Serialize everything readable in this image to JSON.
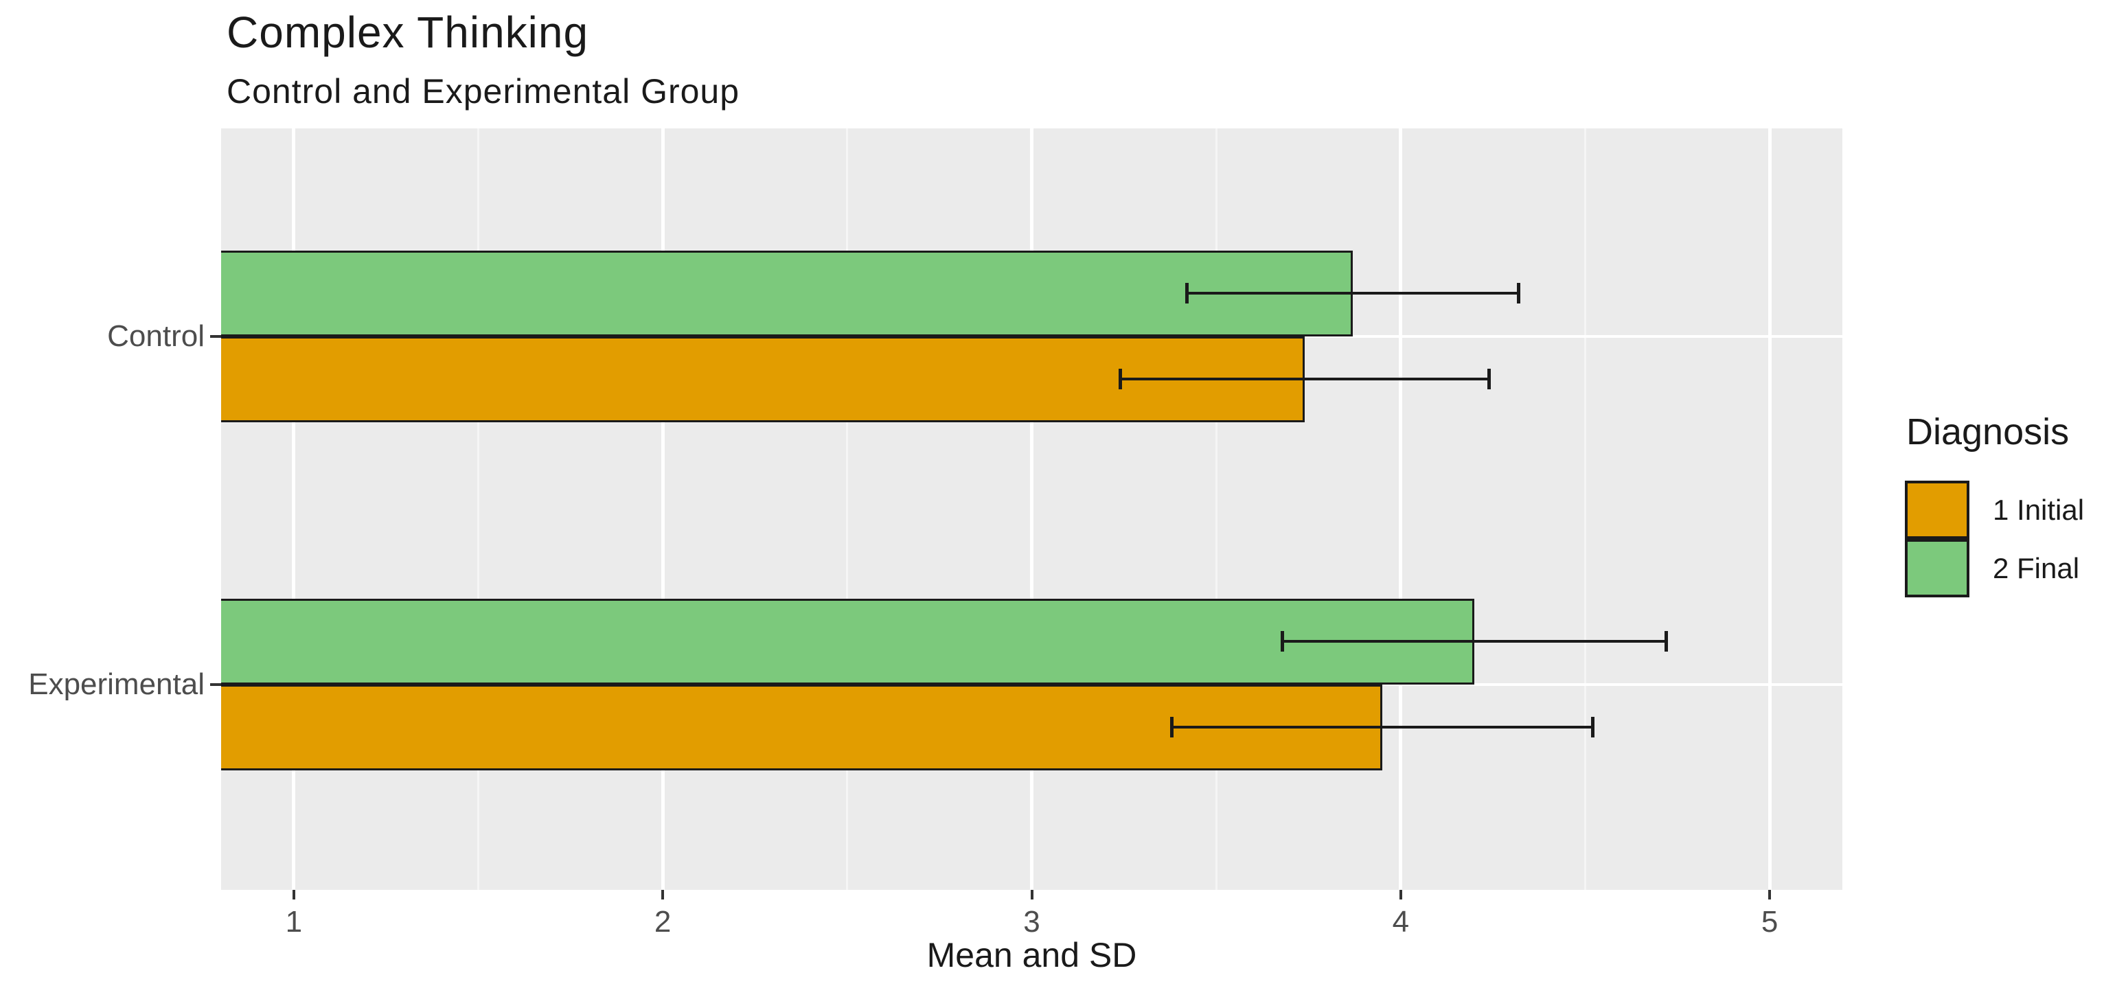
{
  "figure": {
    "title": "Complex Thinking",
    "subtitle": "Control and Experimental Group"
  },
  "chart_data": {
    "type": "bar",
    "orientation": "horizontal",
    "title": "Complex Thinking",
    "subtitle": "Control and Experimental Group",
    "xlabel": "Mean and SD",
    "ylabel": "",
    "categories": [
      "Control",
      "Experimental"
    ],
    "series": [
      {
        "name": "1 Initial",
        "color": "#e29d00",
        "values": [
          3.74,
          3.95
        ],
        "error_low": [
          3.24,
          3.38
        ],
        "error_high": [
          4.24,
          4.52
        ]
      },
      {
        "name": "2 Final",
        "color": "#7cc97c",
        "values": [
          3.87,
          4.2
        ],
        "error_low": [
          3.42,
          3.68
        ],
        "error_high": [
          4.32,
          4.72
        ]
      }
    ],
    "legend": {
      "title": "Diagnosis",
      "position": "right",
      "entries": [
        {
          "label": "1 Initial",
          "color": "#e29d00"
        },
        {
          "label": "2 Final",
          "color": "#7cc97c"
        }
      ]
    },
    "x_ticks": [
      1,
      2,
      3,
      4,
      5
    ],
    "x_minor_ticks": [
      1.5,
      2.5,
      3.5,
      4.5
    ],
    "xlim": [
      0.803,
      5.197
    ],
    "grid": true,
    "colors": {
      "panel_background": "#ebebeb",
      "grid_major": "#ffffff",
      "grid_minor": "#f5f5f5",
      "bar_border": "#1a1a1a",
      "errorbar": "#1a1a1a",
      "tick_mark": "#333333",
      "tick_label": "#4d4d4d",
      "text": "#1a1a1a"
    }
  }
}
